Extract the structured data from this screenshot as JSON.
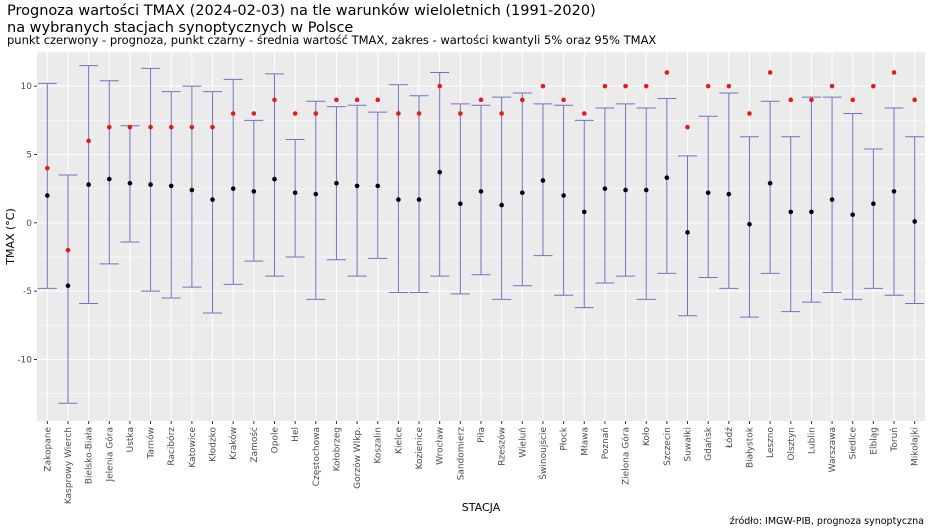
{
  "header": {
    "title_line1": "Prognoza wartości TMAX (2024-02-03) na tle warunków wieloletnich (1991-2020)",
    "title_line2": "na wybranych stacjach synoptycznych w Polsce",
    "subtitle": "punkt czerwony - prognoza, punkt czarny - średnia wartość TMAX, zakres - wartości kwantyli 5% oraz 95% TMAX"
  },
  "caption": "źródło: IMGW-PIB, prognoza synoptyczna",
  "colors": {
    "forecast": "#e41a1c",
    "mean": "#000000",
    "range": "#7570c0",
    "panel": "#ebebeb",
    "grid": "#ffffff"
  },
  "chart_data": {
    "type": "errorbar",
    "xlabel": "STACJA",
    "ylabel": "TMAX (°C)",
    "ylim": [
      -14.5,
      12.5
    ],
    "yticks": [
      -10,
      -5,
      0,
      5,
      10
    ],
    "grid": true,
    "categories": [
      "Zakopane",
      "Kasprowy Wierch",
      "Bielsko-Biała",
      "Jelenia Góra",
      "Ustka",
      "Tarnów",
      "Racibórz",
      "Katowice",
      "Kłodzko",
      "Kraków",
      "Zamość",
      "Opole",
      "Hel",
      "Częstochowa",
      "Kołobrzeg",
      "Gorzów Wlkp.",
      "Koszalin",
      "Kielce",
      "Kozienice",
      "Wrocław",
      "Sandomierz",
      "Piła",
      "Rzeszów",
      "Wieluń",
      "Świnoujście",
      "Płock",
      "Mława",
      "Poznań",
      "Zielona Góra",
      "Koło",
      "Szczecin",
      "Suwałki",
      "Gdańsk",
      "Łódź",
      "Białystok",
      "Leszno",
      "Olsztyn",
      "Lublin",
      "Warszawa",
      "Siedlce",
      "Elbląg",
      "Toruń",
      "Mikołajki"
    ],
    "series": [
      {
        "name": "prognoza",
        "values": [
          4,
          -2,
          6,
          7,
          7,
          7,
          7,
          7,
          7,
          8,
          8,
          9,
          8,
          8,
          9,
          9,
          9,
          8,
          8,
          10,
          8,
          9,
          8,
          9,
          10,
          9,
          8,
          10,
          10,
          10,
          11,
          7,
          10,
          10,
          8,
          11,
          9,
          9,
          10,
          9,
          10,
          11,
          9
        ]
      },
      {
        "name": "średnia",
        "values": [
          2.0,
          -4.6,
          2.8,
          3.2,
          2.9,
          2.8,
          2.7,
          2.4,
          1.7,
          2.5,
          2.3,
          3.2,
          2.2,
          2.1,
          2.9,
          2.7,
          2.7,
          1.7,
          1.7,
          3.7,
          1.4,
          2.3,
          1.3,
          2.2,
          3.1,
          2.0,
          0.8,
          2.5,
          2.4,
          2.4,
          3.3,
          -0.7,
          2.2,
          2.1,
          -0.1,
          2.9,
          0.8,
          0.8,
          1.7,
          0.6,
          1.4,
          2.3,
          0.1
        ]
      },
      {
        "name": "kwantyl 5%",
        "values": [
          -4.8,
          -13.2,
          -5.9,
          -3.0,
          -1.4,
          -5.0,
          -5.5,
          -4.7,
          -6.6,
          -4.5,
          -2.8,
          -3.9,
          -2.5,
          -5.6,
          -2.7,
          -3.9,
          -2.6,
          -5.1,
          -5.1,
          -3.9,
          -5.2,
          -3.8,
          -5.6,
          -4.6,
          -2.4,
          -5.3,
          -6.2,
          -4.4,
          -3.9,
          -5.6,
          -3.7,
          -6.8,
          -4.0,
          -4.8,
          -6.9,
          -3.7,
          -6.5,
          -5.8,
          -5.1,
          -5.6,
          -4.8,
          -5.3,
          -5.9
        ]
      },
      {
        "name": "kwantyl 95%",
        "values": [
          10.2,
          3.5,
          11.5,
          10.4,
          7.1,
          11.3,
          9.6,
          10.0,
          9.6,
          10.5,
          7.5,
          10.9,
          6.1,
          8.9,
          8.5,
          8.6,
          8.1,
          10.1,
          9.3,
          11.0,
          8.7,
          8.6,
          9.2,
          9.5,
          8.7,
          8.6,
          7.5,
          8.4,
          8.7,
          8.4,
          9.1,
          4.9,
          7.8,
          9.5,
          6.3,
          8.9,
          6.3,
          9.2,
          9.2,
          8.0,
          5.4,
          8.4,
          6.3
        ]
      }
    ]
  }
}
